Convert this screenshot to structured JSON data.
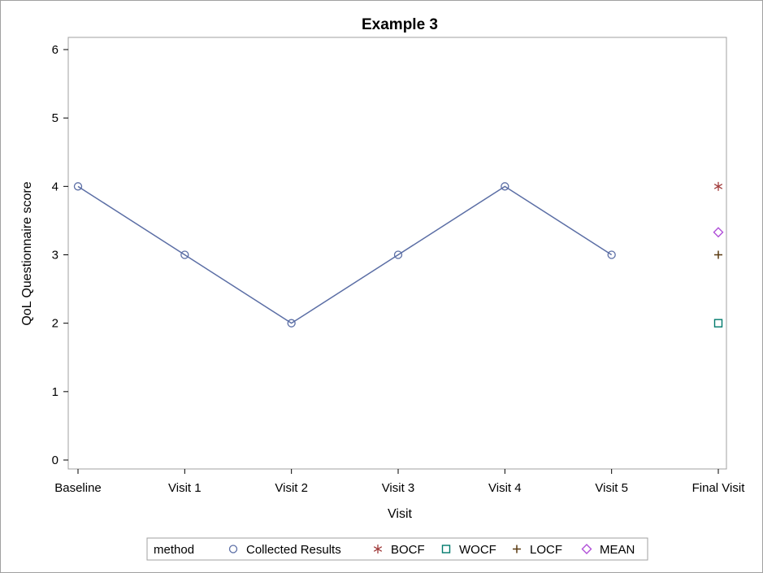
{
  "chart_data": {
    "type": "line",
    "title": "Example 3",
    "xlabel": "Visit",
    "ylabel": "QoL Questionnaire score",
    "categories": [
      "Baseline",
      "Visit 1",
      "Visit 2",
      "Visit 3",
      "Visit 4",
      "Visit 5",
      "Final Visit"
    ],
    "ylim": [
      0,
      6
    ],
    "yticks": [
      0,
      1,
      2,
      3,
      4,
      5,
      6
    ],
    "grid": false,
    "legend": {
      "position": "bottom",
      "title": "method",
      "entries": [
        "Collected Results",
        "BOCF",
        "WOCF",
        "LOCF",
        "MEAN"
      ]
    },
    "series": [
      {
        "name": "Collected Results",
        "marker": "circle",
        "color": "#5b6ea5",
        "line": true,
        "points": [
          {
            "x": "Baseline",
            "y": 4
          },
          {
            "x": "Visit 1",
            "y": 3
          },
          {
            "x": "Visit 2",
            "y": 2
          },
          {
            "x": "Visit 3",
            "y": 3
          },
          {
            "x": "Visit 4",
            "y": 4
          },
          {
            "x": "Visit 5",
            "y": 3
          }
        ]
      },
      {
        "name": "BOCF",
        "marker": "asterisk",
        "color": "#a03a3a",
        "line": false,
        "points": [
          {
            "x": "Final Visit",
            "y": 4
          }
        ]
      },
      {
        "name": "WOCF",
        "marker": "square",
        "color": "#007a6c",
        "line": false,
        "points": [
          {
            "x": "Final Visit",
            "y": 2
          }
        ]
      },
      {
        "name": "LOCF",
        "marker": "plus",
        "color": "#5a3a10",
        "line": false,
        "points": [
          {
            "x": "Final Visit",
            "y": 3
          }
        ]
      },
      {
        "name": "MEAN",
        "marker": "diamond",
        "color": "#b04fd8",
        "line": false,
        "points": [
          {
            "x": "Final Visit",
            "y": 3.33
          }
        ]
      }
    ]
  }
}
